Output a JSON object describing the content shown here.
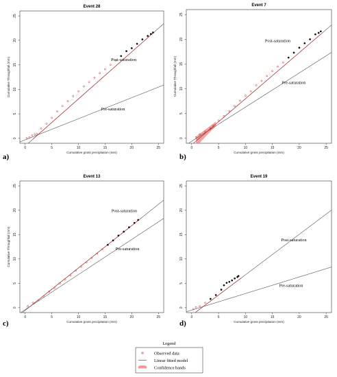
{
  "chart_data": [
    {
      "type": "scatter",
      "panel": "a)",
      "title": "Event 28",
      "xlabel": "Cumulative gross precipitation (mm)",
      "ylabel": "Cumulative Throughfall (mm)",
      "xlim": [
        -1,
        26
      ],
      "ylim": [
        -1,
        26
      ],
      "xticks": [
        0,
        5,
        10,
        15,
        20,
        25
      ],
      "yticks": [
        0,
        5,
        10,
        15,
        20,
        25
      ],
      "points": [
        [
          0.3,
          0.05
        ],
        [
          0.8,
          0.2
        ],
        [
          1.3,
          0.6
        ],
        [
          1.8,
          0.8
        ],
        [
          2.2,
          0.9
        ],
        [
          3,
          2
        ],
        [
          4,
          3
        ],
        [
          5,
          4.2
        ],
        [
          6,
          5.5
        ],
        [
          7,
          6.6
        ],
        [
          8,
          7.6
        ],
        [
          9,
          8.6
        ],
        [
          10,
          9.6
        ],
        [
          11,
          10.6
        ],
        [
          12,
          11.5
        ],
        [
          13,
          12.4
        ],
        [
          14,
          13.3
        ],
        [
          15,
          14.1
        ],
        [
          16,
          15
        ],
        [
          17,
          15.9
        ],
        [
          18,
          16.8
        ],
        [
          19,
          17.8
        ],
        [
          20,
          18.4
        ],
        [
          21,
          19.3
        ],
        [
          22,
          20.2
        ],
        [
          23,
          20.9
        ],
        [
          23.6,
          21.3
        ],
        [
          24,
          21.6
        ]
      ],
      "lines": [
        {
          "name": "Post-saturation",
          "intercept": -1.55,
          "slope": 0.96
        },
        {
          "name": "Pre-saturation",
          "intercept": -0.3,
          "slope": 0.43
        }
      ],
      "fit_range": [
        1.5,
        24
      ],
      "annotations": [
        {
          "text": "Post-saturation",
          "x": 18.5,
          "y": 15.8
        },
        {
          "text": "Pre-saturation",
          "x": 16.5,
          "y": 5.7
        }
      ]
    },
    {
      "type": "scatter",
      "panel": "b)",
      "title": "Event 7",
      "xlabel": "Cumulative gross precipitation (mm)",
      "ylabel": "Cumulative Throughfall (mm)",
      "xlim": [
        -1,
        26
      ],
      "ylim": [
        -1,
        26
      ],
      "xticks": [
        0,
        5,
        10,
        15,
        20,
        25
      ],
      "yticks": [
        0,
        5,
        10,
        15,
        20,
        25
      ],
      "points": [
        [
          0.8,
          0.2
        ],
        [
          1.5,
          0.8
        ],
        [
          2.5,
          1.3
        ],
        [
          3.5,
          2
        ],
        [
          4,
          2.5
        ],
        [
          5,
          3.6
        ],
        [
          6,
          4.5
        ],
        [
          7,
          5.5
        ],
        [
          8,
          6.5
        ],
        [
          9,
          7.6
        ],
        [
          10,
          8.6
        ],
        [
          11,
          9.5
        ],
        [
          12,
          10.7
        ],
        [
          13,
          11.6
        ],
        [
          14,
          12.6
        ],
        [
          15,
          13.6
        ],
        [
          16,
          14.5
        ],
        [
          17,
          15.3
        ],
        [
          18,
          16.3
        ],
        [
          19,
          17.3
        ],
        [
          20,
          18.3
        ],
        [
          21,
          19.2
        ],
        [
          22,
          20
        ],
        [
          23,
          21
        ],
        [
          23.6,
          21.3
        ],
        [
          24,
          21.6
        ]
      ],
      "lines": [
        {
          "name": "Post-saturation",
          "intercept": -1.3,
          "slope": 0.93
        },
        {
          "name": "Pre-saturation",
          "intercept": -0.6,
          "slope": 0.69
        }
      ],
      "fit_range": [
        1,
        24
      ],
      "confidence_band": {
        "x_from": 0.8,
        "x_to": 4.5
      },
      "annotations": [
        {
          "text": "Post-saturation",
          "x": 16,
          "y": 19.4
        },
        {
          "text": "Pre-saturation",
          "x": 19,
          "y": 11
        }
      ]
    },
    {
      "type": "scatter",
      "panel": "c)",
      "title": "Event 13",
      "xlabel": "Cumulative gross precipitation (mm)",
      "ylabel": "Cumulative Throughfall (mm)",
      "xlim": [
        -1,
        26
      ],
      "ylim": [
        -1,
        26
      ],
      "xticks": [
        0,
        5,
        10,
        15,
        20,
        25
      ],
      "yticks": [
        0,
        5,
        10,
        15,
        20,
        25
      ],
      "points": [
        [
          0.5,
          0.3
        ],
        [
          1.5,
          1
        ],
        [
          2.5,
          1.5
        ],
        [
          3.5,
          2.3
        ],
        [
          4.5,
          3.3
        ],
        [
          5.5,
          4
        ],
        [
          6.5,
          5
        ],
        [
          7.5,
          5.8
        ],
        [
          8.5,
          6.6
        ],
        [
          9.5,
          7.6
        ],
        [
          10.5,
          8.4
        ],
        [
          11.5,
          9.3
        ],
        [
          12.5,
          10.2
        ],
        [
          13.5,
          11.1
        ],
        [
          14.5,
          12
        ],
        [
          15.5,
          12.9
        ],
        [
          16.5,
          13.8
        ],
        [
          17.5,
          14.8
        ],
        [
          18.5,
          15.6
        ],
        [
          19.5,
          16.5
        ],
        [
          20.5,
          17.4
        ],
        [
          21.2,
          18
        ]
      ],
      "lines": [
        {
          "name": "Post-saturation",
          "intercept": -0.55,
          "slope": 0.87
        },
        {
          "name": "Pre-saturation",
          "intercept": -0.4,
          "slope": 0.72
        }
      ],
      "fit_range": [
        0.5,
        21.3
      ],
      "annotations": [
        {
          "text": "Post-saturation",
          "x": 18.6,
          "y": 19.6
        },
        {
          "text": "Pre-saturation",
          "x": 19.2,
          "y": 11.8
        }
      ]
    },
    {
      "type": "scatter",
      "panel": "d)",
      "title": "Event 19",
      "xlabel": "Cumulative gross precipitation (mm)",
      "ylabel": "",
      "xlim": [
        -1,
        26
      ],
      "ylim": [
        -1,
        26
      ],
      "xticks": [
        0,
        5,
        10,
        15,
        20,
        25
      ],
      "yticks": [
        0,
        5,
        10,
        15,
        20,
        25
      ],
      "points": [
        [
          0.3,
          -0.3
        ],
        [
          0.8,
          0.1
        ],
        [
          1.5,
          0.3
        ],
        [
          2.5,
          1
        ],
        [
          3.5,
          1.8
        ],
        [
          4.5,
          2.6
        ],
        [
          5.5,
          3.7
        ],
        [
          6,
          4.6
        ],
        [
          6.5,
          5.1
        ],
        [
          7,
          5.3
        ],
        [
          7.5,
          5.6
        ],
        [
          8,
          6
        ],
        [
          8.5,
          6.3
        ],
        [
          8.7,
          6.5
        ]
      ],
      "lines": [
        {
          "name": "Post-saturation",
          "intercept": -1.55,
          "slope": 0.83
        },
        {
          "name": "Pre-saturation",
          "intercept": -0.5,
          "slope": 0.34
        }
      ],
      "fit_range": [
        0.8,
        9.2
      ],
      "annotations": [
        {
          "text": "Post-saturation",
          "x": 19,
          "y": 13.6
        },
        {
          "text": "Pre-saturation",
          "x": 18.5,
          "y": 4.3
        }
      ]
    }
  ],
  "legend": {
    "title": "Legend",
    "items": [
      {
        "label": "Observed data",
        "kind": "point"
      },
      {
        "label": "Linear fitted model",
        "kind": "line"
      },
      {
        "label": "Confidence bands",
        "kind": "band"
      }
    ]
  },
  "colors": {
    "point": "#c03030",
    "line": "#555555",
    "band": "#f08080"
  }
}
